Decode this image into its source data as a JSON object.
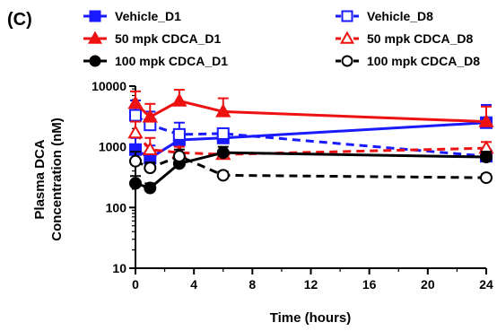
{
  "panel_label": "(C)",
  "chart_data": {
    "type": "line",
    "xlabel": "Time (hours)",
    "ylabel": [
      "Plasma DCA",
      "Concentration (nM)"
    ],
    "xlim": [
      0,
      24
    ],
    "ylim": [
      10,
      10000
    ],
    "yscale": "log",
    "xticks": [
      0,
      4,
      8,
      12,
      16,
      20,
      24
    ],
    "yticks": [
      10,
      100,
      1000,
      10000
    ],
    "ytick_labels": [
      "10",
      "100",
      "1000",
      "10000"
    ],
    "legend_position": "top",
    "grid": false,
    "series": [
      {
        "name": "Vehicle_D1",
        "color": "#1a1aff",
        "marker": "square",
        "filled": true,
        "dashed": false,
        "x": [
          0,
          1,
          3,
          6,
          24
        ],
        "y": [
          900,
          650,
          1300,
          1400,
          2500
        ],
        "err": [
          500,
          400,
          1200,
          200,
          2400
        ]
      },
      {
        "name": "Vehicle_D8",
        "color": "#1a1aff",
        "marker": "square",
        "filled": false,
        "dashed": true,
        "x": [
          0,
          1,
          3,
          6,
          24
        ],
        "y": [
          3300,
          2300,
          1600,
          1650,
          700
        ],
        "err": [
          2500,
          1500,
          300,
          300,
          200
        ]
      },
      {
        "name": "50 mpk CDCA_D1",
        "color": "#ee1111",
        "marker": "triangle",
        "filled": true,
        "dashed": false,
        "x": [
          0,
          1,
          3,
          6,
          24
        ],
        "y": [
          5200,
          3100,
          5700,
          3800,
          2600
        ],
        "err": [
          3000,
          2000,
          3000,
          2500,
          2000
        ]
      },
      {
        "name": "50 mpk CDCA_D8",
        "color": "#ee1111",
        "marker": "triangle",
        "filled": false,
        "dashed": true,
        "x": [
          0,
          1,
          3,
          6,
          24
        ],
        "y": [
          1700,
          900,
          800,
          750,
          950
        ],
        "err": [
          900,
          500,
          200,
          100,
          250
        ]
      },
      {
        "name": "100 mpk CDCA_D1",
        "color": "#000000",
        "marker": "circle",
        "filled": true,
        "dashed": false,
        "x": [
          0,
          1,
          3,
          6,
          24
        ],
        "y": [
          250,
          210,
          530,
          800,
          680
        ],
        "err": [
          80,
          40,
          200,
          200,
          150
        ]
      },
      {
        "name": "100 mpk CDCA_D8",
        "color": "#000000",
        "marker": "circle",
        "filled": false,
        "dashed": true,
        "x": [
          0,
          1,
          3,
          6,
          24
        ],
        "y": [
          580,
          450,
          700,
          340,
          310
        ],
        "err": [
          250,
          100,
          200,
          50,
          40
        ]
      }
    ]
  }
}
